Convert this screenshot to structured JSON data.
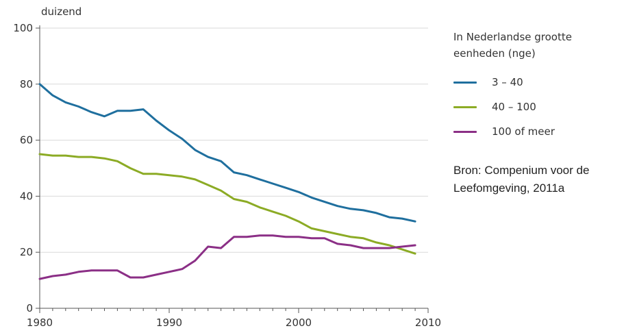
{
  "chart_data": {
    "type": "line",
    "ylabel": "duizend",
    "x": [
      1980,
      1981,
      1982,
      1983,
      1984,
      1985,
      1986,
      1987,
      1988,
      1989,
      1990,
      1991,
      1992,
      1993,
      1994,
      1995,
      1996,
      1997,
      1998,
      1999,
      2000,
      2001,
      2002,
      2003,
      2004,
      2005,
      2006,
      2007,
      2008,
      2009
    ],
    "xticks": [
      "1980",
      "1990",
      "2000",
      "2010"
    ],
    "yticks": [
      "0",
      "20",
      "40",
      "60",
      "80",
      "100"
    ],
    "xlim": [
      1980,
      2010
    ],
    "ylim": [
      0,
      100
    ],
    "grid": "horizontal",
    "legend_title": "In Nederlandse grootte eenheden (nge)",
    "legend_position": "right",
    "series": [
      {
        "name": "3 – 40",
        "color": "#1f6f9e",
        "values": [
          80,
          76,
          73.5,
          72,
          70,
          68.5,
          70.5,
          70.5,
          71,
          67,
          63.5,
          60.5,
          56.5,
          54,
          52.5,
          48.5,
          47.5,
          46,
          44.5,
          43,
          41.5,
          39.5,
          38,
          36.5,
          35.5,
          35,
          34,
          32.5,
          32,
          31
        ]
      },
      {
        "name": "40 – 100",
        "color": "#8cab25",
        "values": [
          55,
          54.5,
          54.5,
          54,
          54,
          53.5,
          52.5,
          50,
          48,
          48,
          47.5,
          47,
          46,
          44,
          42,
          39,
          38,
          36,
          34.5,
          33,
          31,
          28.5,
          27.5,
          26.5,
          25.5,
          25,
          23.5,
          22.5,
          21,
          19.5
        ]
      },
      {
        "name": "100 of meer",
        "color": "#8b2f86",
        "values": [
          10.5,
          11.5,
          12,
          13,
          13.5,
          13.5,
          13.5,
          11,
          11,
          12,
          13,
          14,
          17,
          22,
          21.5,
          25.5,
          25.5,
          26,
          26,
          25.5,
          25.5,
          25,
          25,
          23,
          22.5,
          21.5,
          21.5,
          21.5,
          22,
          22.5
        ]
      }
    ]
  },
  "source": {
    "text": "Bron: Compenium voor de Leefomgeving, 2011a"
  }
}
